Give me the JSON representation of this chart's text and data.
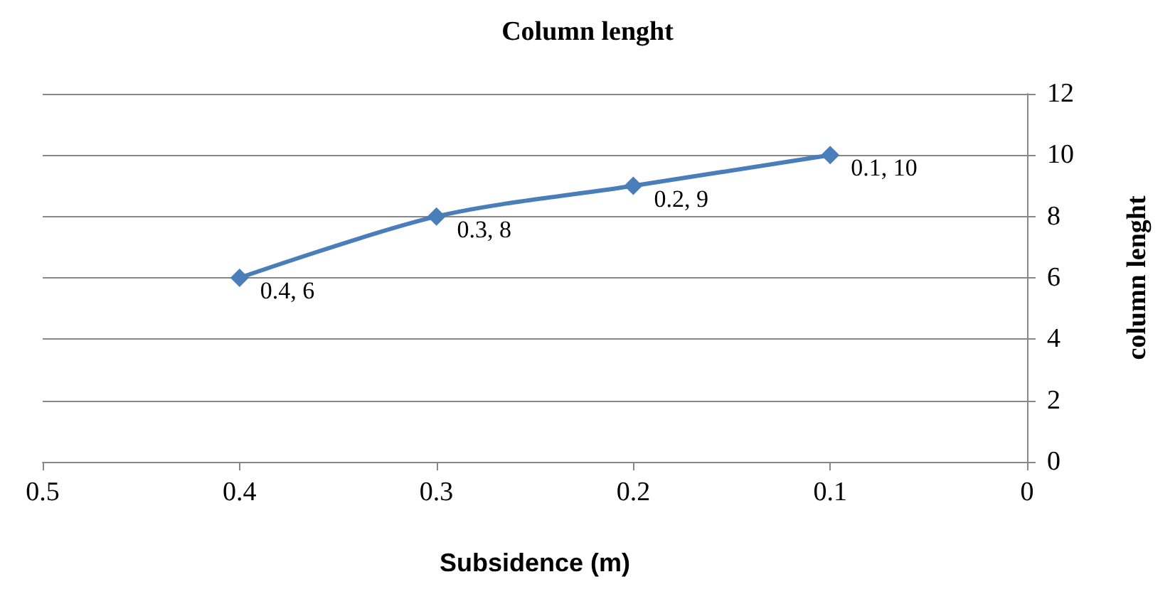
{
  "chart_data": {
    "type": "line",
    "title": "Column lenght",
    "xlabel": "Subsidence (m)",
    "ylabel": "column lenght",
    "x": [
      0.4,
      0.3,
      0.2,
      0.1
    ],
    "series": [
      {
        "color": "#4a7ebb",
        "values": [
          6,
          8,
          9,
          10
        ],
        "value_labels": [
          "0.4, 6",
          "0.3, 8",
          "0.2, 9",
          "0.1, 10"
        ]
      }
    ],
    "xlim": [
      0.5,
      0
    ],
    "xticks": [
      0.5,
      0.4,
      0.3,
      0.2,
      0.1,
      0
    ],
    "ylim": [
      0,
      12
    ],
    "yticks": [
      0,
      2,
      4,
      6,
      8,
      10,
      12
    ],
    "grid": "y",
    "marker": "diamond",
    "line_style": "solid"
  }
}
